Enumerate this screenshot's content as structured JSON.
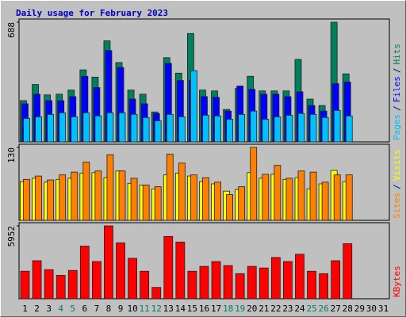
{
  "title": "Daily usage for February 2023",
  "legend_separator": "/",
  "chart_data": [
    {
      "type": "bar",
      "ylim": [
        0,
        688
      ],
      "yticks": [
        688
      ],
      "series": [
        {
          "name": "Pages",
          "color": "#00c0ff",
          "values": [
            135,
            144,
            158,
            167,
            144,
            167,
            149,
            167,
            167,
            158,
            140,
            121,
            158,
            144,
            409,
            153,
            149,
            130,
            158,
            177,
            130,
            144,
            153,
            163,
            158,
            140,
            181,
            149,
            null,
            null,
            null
          ]
        },
        {
          "name": "Files",
          "color": "#0000ff",
          "values": [
            219,
            274,
            237,
            237,
            260,
            377,
            312,
            525,
            428,
            246,
            219,
            163,
            451,
            353,
            353,
            260,
            256,
            177,
            321,
            302,
            274,
            274,
            260,
            288,
            209,
            177,
            335,
            344,
            null,
            null,
            null
          ]
        },
        {
          "name": "Hits",
          "color": "#00805c",
          "values": [
            237,
            330,
            270,
            274,
            298,
            414,
            372,
            581,
            456,
            298,
            274,
            172,
            484,
            395,
            623,
            298,
            293,
            186,
            307,
            377,
            293,
            293,
            293,
            474,
            246,
            209,
            688,
            391,
            null,
            null,
            null
          ]
        }
      ]
    },
    {
      "type": "bar",
      "ylim": [
        0,
        130
      ],
      "yticks": [
        130
      ],
      "series": [
        {
          "name": "Sites",
          "color": "#ff8000",
          "values": [
            73,
            79,
            72,
            81,
            86,
            104,
            88,
            117,
            88,
            75,
            63,
            60,
            118,
            102,
            81,
            76,
            68,
            46,
            60,
            130,
            82,
            98,
            75,
            88,
            86,
            68,
            81,
            81,
            null,
            null,
            null
          ]
        },
        {
          "name": "Visits",
          "color": "#ffff00",
          "values": [
            69,
            75,
            68,
            73,
            75,
            84,
            85,
            76,
            88,
            66,
            63,
            56,
            81,
            84,
            79,
            69,
            65,
            52,
            55,
            85,
            75,
            82,
            73,
            76,
            56,
            65,
            89,
            69,
            null,
            null,
            null
          ]
        }
      ]
    },
    {
      "type": "bar",
      "ylim": [
        0,
        5952
      ],
      "yticks": [
        5952
      ],
      "categories": [
        "1",
        "2",
        "3",
        "4",
        "5",
        "6",
        "7",
        "8",
        "9",
        "10",
        "11",
        "12",
        "13",
        "14",
        "15",
        "16",
        "17",
        "18",
        "19",
        "20",
        "21",
        "22",
        "23",
        "24",
        "25",
        "26",
        "27",
        "28",
        "29",
        "30",
        "31"
      ],
      "category_colors": [
        "#000000",
        "#000000",
        "#000000",
        "#00805c",
        "#00805c",
        "#000000",
        "#000000",
        "#000000",
        "#000000",
        "#000000",
        "#00805c",
        "#00805c",
        "#000000",
        "#000000",
        "#000000",
        "#000000",
        "#000000",
        "#00805c",
        "#00805c",
        "#000000",
        "#000000",
        "#000000",
        "#000000",
        "#000000",
        "#00805c",
        "#00805c",
        "#000000",
        "#000000",
        "#000000",
        "#000000",
        "#000000"
      ],
      "series": [
        {
          "name": "KBytes",
          "color": "#ff0000",
          "values": [
            2249,
            3108,
            2380,
            1917,
            2315,
            4299,
            3042,
            5952,
            4563,
            3306,
            2249,
            926,
            5091,
            4628,
            2249,
            2645,
            3042,
            2711,
            2050,
            2645,
            2513,
            3372,
            3042,
            3637,
            2249,
            2050,
            3108,
            4497,
            null,
            null,
            null
          ]
        }
      ]
    }
  ]
}
